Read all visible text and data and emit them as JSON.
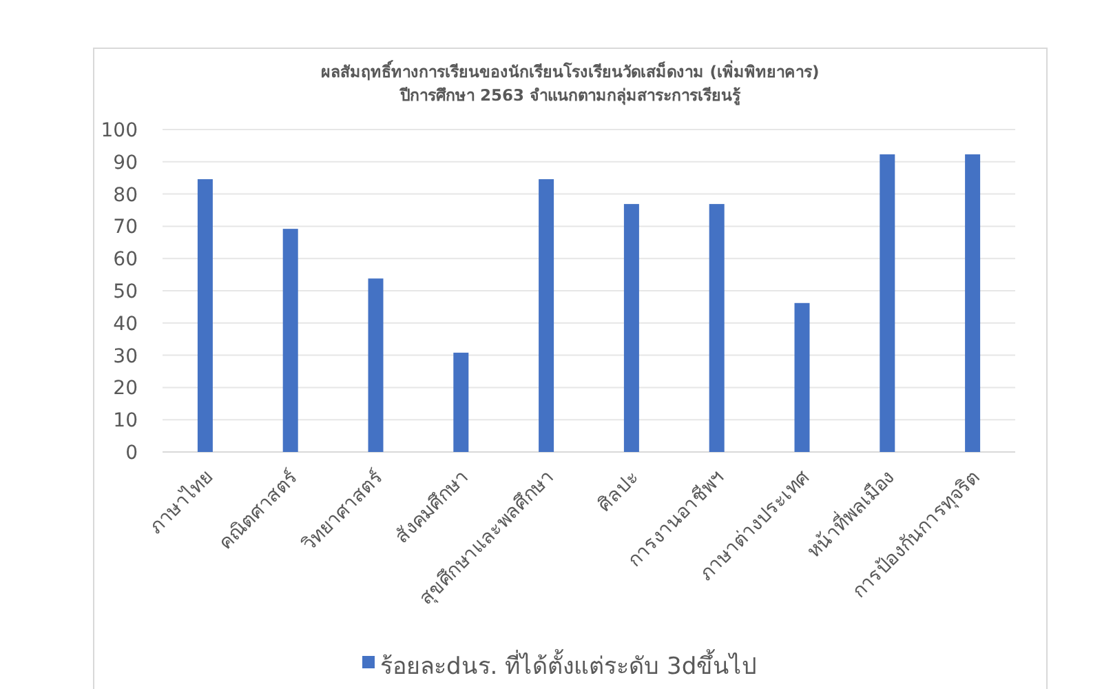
{
  "chart_data": {
    "type": "bar",
    "title": "ผลสัมฤทธิ์ทางการเรียนของนักเรียนโรงเรียนวัดเสม็ดงาม (เพิ่มพิทยาคาร)\nปีการศึกษา 2563 จำแนกตามกลุ่มสาระการเรียนรู้",
    "categories": [
      "ภาษาไทย",
      "คณิตศาสตร์",
      "วิทยาศาสตร์",
      "สังคมศึกษา",
      "สุขศึกษาและพลศึกษา",
      "ศิลปะ",
      "การงานอาชีพฯ",
      "ภาษาต่างประเทศ",
      "หน้าที่พลเมือง",
      "การป้องกันการทุจริต"
    ],
    "series": [
      {
        "name": "ร้อยละdนร. ที่ได้ตั้งแต่ระดับ 3dขึ้นไป",
        "color": "#4472c4",
        "values": [
          84.6,
          69.2,
          53.8,
          30.8,
          84.6,
          76.9,
          76.9,
          46.2,
          92.3,
          92.3
        ]
      }
    ],
    "ylim": [
      0,
      100
    ],
    "yticks": [
      0,
      10,
      20,
      30,
      40,
      50,
      60,
      70,
      80,
      90,
      100
    ],
    "grid": "y",
    "legend": "bottom"
  }
}
